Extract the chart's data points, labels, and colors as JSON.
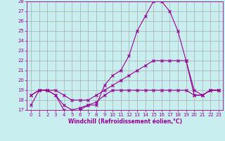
{
  "xlabel": "Windchill (Refroidissement éolien,°C)",
  "bg_color": "#c8eef0",
  "grid_color": "#aaaaaa",
  "line_color": "#990099",
  "hours": [
    0,
    1,
    2,
    3,
    4,
    5,
    6,
    7,
    8,
    9,
    10,
    11,
    12,
    13,
    14,
    15,
    16,
    17,
    18,
    19,
    20,
    21,
    22,
    23
  ],
  "temp": [
    17.5,
    19.0,
    19.0,
    18.5,
    17.0,
    16.8,
    17.0,
    17.5,
    17.5,
    19.5,
    20.5,
    21.0,
    22.5,
    25.0,
    26.5,
    28.0,
    28.0,
    27.0,
    25.0,
    22.0,
    18.5,
    18.5,
    19.0,
    19.0
  ],
  "line2": [
    18.5,
    19.0,
    19.0,
    19.0,
    18.5,
    18.0,
    18.0,
    18.0,
    18.5,
    19.0,
    19.5,
    20.0,
    20.5,
    21.0,
    21.5,
    22.0,
    22.0,
    22.0,
    22.0,
    22.0,
    19.0,
    18.5,
    19.0,
    19.0
  ],
  "line3": [
    18.5,
    19.0,
    19.0,
    18.5,
    17.5,
    17.0,
    17.2,
    17.5,
    17.8,
    18.5,
    19.0,
    19.0,
    19.0,
    19.0,
    19.0,
    19.0,
    19.0,
    19.0,
    19.0,
    19.0,
    18.5,
    18.5,
    19.0,
    19.0
  ],
  "ylim": [
    17,
    28
  ],
  "yticks": [
    17,
    18,
    19,
    20,
    21,
    22,
    23,
    24,
    25,
    26,
    27,
    28
  ]
}
